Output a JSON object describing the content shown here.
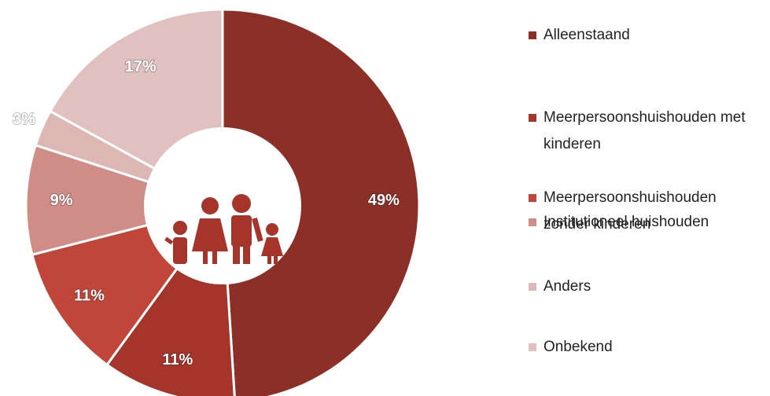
{
  "chart_data": {
    "type": "donut",
    "categories": [
      "Alleenstaand",
      "Meerpersoonshuishouden met kinderen",
      "Meerpersoonshuishouden zonder kinderen",
      "Institutioneel huishouden",
      "Anders",
      "Onbekend"
    ],
    "values": [
      49,
      11,
      11,
      9,
      3,
      17
    ],
    "value_labels": [
      "49%",
      "11%",
      "11%",
      "9%",
      "3%",
      "17%"
    ],
    "colors": [
      "#8c2f27",
      "#a5342b",
      "#c0463a",
      "#d08c87",
      "#ddb7b4",
      "#e0c1bf"
    ]
  }
}
